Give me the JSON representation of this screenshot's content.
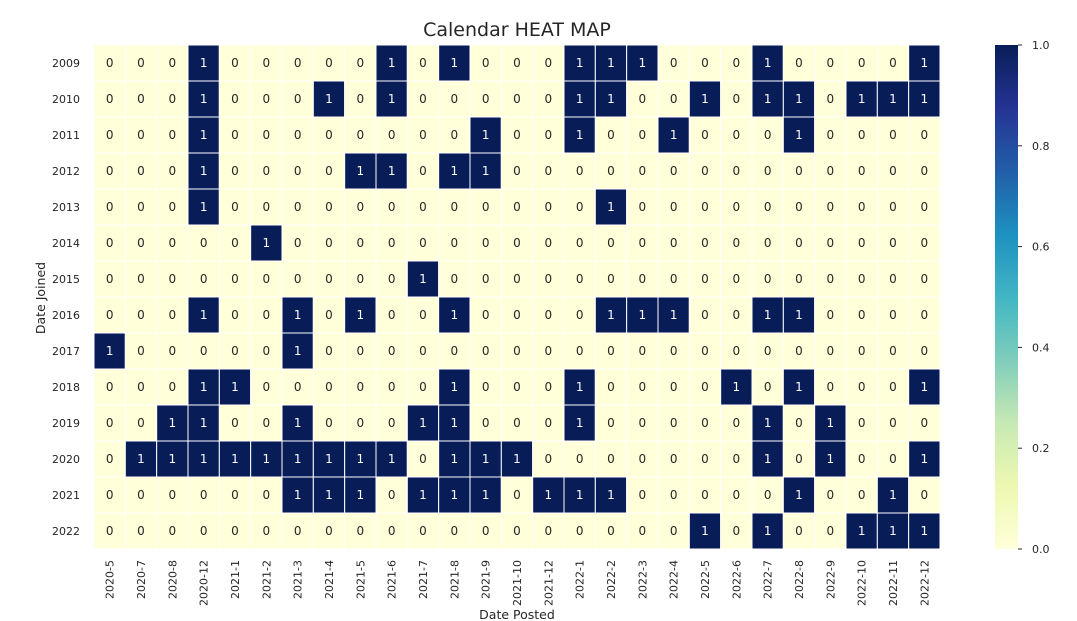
{
  "chart_data": {
    "type": "heatmap",
    "title": "Calendar HEAT MAP",
    "xlabel": "Date Posted",
    "ylabel": "Date Joined",
    "x": [
      "2020-5",
      "2020-7",
      "2020-8",
      "2020-12",
      "2021-1",
      "2021-2",
      "2021-3",
      "2021-4",
      "2021-5",
      "2021-6",
      "2021-7",
      "2021-8",
      "2021-9",
      "2021-10",
      "2021-12",
      "2022-1",
      "2022-2",
      "2022-3",
      "2022-4",
      "2022-5",
      "2022-6",
      "2022-7",
      "2022-8",
      "2022-9",
      "2022-10",
      "2022-11",
      "2022-12"
    ],
    "y": [
      "2009",
      "2010",
      "2011",
      "2012",
      "2013",
      "2014",
      "2015",
      "2016",
      "2017",
      "2018",
      "2019",
      "2020",
      "2021",
      "2022"
    ],
    "values": [
      [
        0,
        0,
        0,
        1,
        0,
        0,
        0,
        0,
        0,
        1,
        0,
        1,
        0,
        0,
        0,
        1,
        1,
        1,
        0,
        0,
        0,
        1,
        0,
        0,
        0,
        0,
        1
      ],
      [
        0,
        0,
        0,
        1,
        0,
        0,
        0,
        1,
        0,
        1,
        0,
        0,
        0,
        0,
        0,
        1,
        1,
        0,
        0,
        1,
        0,
        1,
        1,
        0,
        1,
        1,
        1
      ],
      [
        0,
        0,
        0,
        1,
        0,
        0,
        0,
        0,
        0,
        0,
        0,
        0,
        1,
        0,
        0,
        1,
        0,
        0,
        1,
        0,
        0,
        0,
        1,
        0,
        0,
        0,
        0
      ],
      [
        0,
        0,
        0,
        1,
        0,
        0,
        0,
        0,
        1,
        1,
        0,
        1,
        1,
        0,
        0,
        0,
        0,
        0,
        0,
        0,
        0,
        0,
        0,
        0,
        0,
        0,
        0
      ],
      [
        0,
        0,
        0,
        1,
        0,
        0,
        0,
        0,
        0,
        0,
        0,
        0,
        0,
        0,
        0,
        0,
        1,
        0,
        0,
        0,
        0,
        0,
        0,
        0,
        0,
        0,
        0
      ],
      [
        0,
        0,
        0,
        0,
        0,
        1,
        0,
        0,
        0,
        0,
        0,
        0,
        0,
        0,
        0,
        0,
        0,
        0,
        0,
        0,
        0,
        0,
        0,
        0,
        0,
        0,
        0
      ],
      [
        0,
        0,
        0,
        0,
        0,
        0,
        0,
        0,
        0,
        0,
        1,
        0,
        0,
        0,
        0,
        0,
        0,
        0,
        0,
        0,
        0,
        0,
        0,
        0,
        0,
        0,
        0
      ],
      [
        0,
        0,
        0,
        1,
        0,
        0,
        1,
        0,
        1,
        0,
        0,
        1,
        0,
        0,
        0,
        0,
        1,
        1,
        1,
        0,
        0,
        1,
        1,
        0,
        0,
        0,
        0
      ],
      [
        1,
        0,
        0,
        0,
        0,
        0,
        1,
        0,
        0,
        0,
        0,
        0,
        0,
        0,
        0,
        0,
        0,
        0,
        0,
        0,
        0,
        0,
        0,
        0,
        0,
        0,
        0
      ],
      [
        0,
        0,
        0,
        1,
        1,
        0,
        0,
        0,
        0,
        0,
        0,
        1,
        0,
        0,
        0,
        1,
        0,
        0,
        0,
        0,
        1,
        0,
        1,
        0,
        0,
        0,
        1
      ],
      [
        0,
        0,
        1,
        1,
        0,
        0,
        1,
        0,
        0,
        0,
        1,
        1,
        0,
        0,
        0,
        1,
        0,
        0,
        0,
        0,
        0,
        1,
        0,
        1,
        0,
        0,
        0
      ],
      [
        0,
        1,
        1,
        1,
        1,
        1,
        1,
        1,
        1,
        1,
        0,
        1,
        1,
        1,
        0,
        0,
        0,
        0,
        0,
        0,
        0,
        1,
        0,
        1,
        0,
        0,
        1
      ],
      [
        0,
        0,
        0,
        0,
        0,
        0,
        1,
        1,
        1,
        0,
        1,
        1,
        1,
        0,
        1,
        1,
        1,
        0,
        0,
        0,
        0,
        0,
        1,
        0,
        0,
        1,
        0
      ],
      [
        0,
        0,
        0,
        0,
        0,
        0,
        0,
        0,
        0,
        0,
        0,
        0,
        0,
        0,
        0,
        0,
        0,
        0,
        0,
        1,
        0,
        1,
        0,
        0,
        1,
        1,
        1
      ]
    ],
    "zlim": [
      0,
      1
    ],
    "colorbar_ticks": [
      "0.0",
      "0.2",
      "0.4",
      "0.6",
      "0.8",
      "1.0"
    ],
    "colormap": "YlGnBu",
    "colormap_stops": [
      "#ffffd9",
      "#edf8b1",
      "#c7e9b4",
      "#7fcdbb",
      "#41b6c4",
      "#1d91c0",
      "#225ea8",
      "#253494",
      "#081d58"
    ],
    "colors": {
      "cell_border": "#ffffff",
      "text_dark": "#262626",
      "text_light": "#ffffff",
      "low": "#ffffd9",
      "high": "#081d58"
    },
    "legend": "right",
    "grid": false
  }
}
